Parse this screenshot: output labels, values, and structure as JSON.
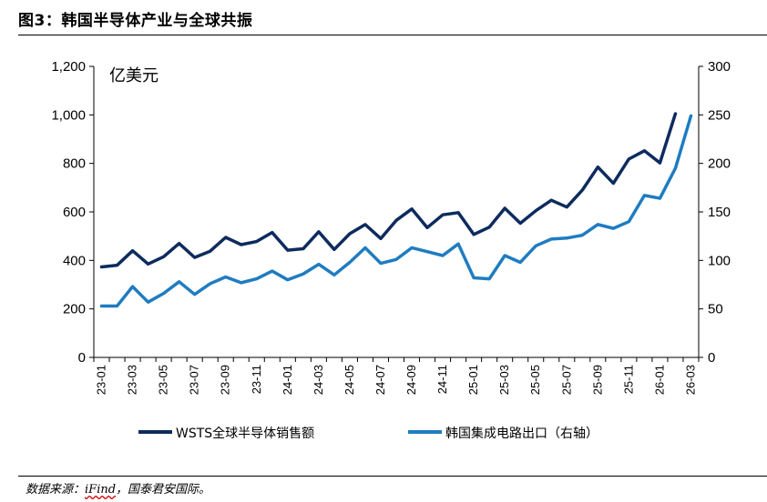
{
  "figure": {
    "title": "图3：韩国半导体产业与全球共振",
    "source_prefix": "数据来源：",
    "source_name": "iFind",
    "source_suffix": "，国泰君安国际。"
  },
  "chart_data": {
    "type": "line",
    "unit_label": "亿美元",
    "categories": [
      "23-01",
      "23-02",
      "23-03",
      "23-04",
      "23-05",
      "23-06",
      "23-07",
      "23-08",
      "23-09",
      "23-10",
      "23-11",
      "23-12",
      "24-01",
      "24-02",
      "24-03",
      "24-04",
      "24-05",
      "24-06",
      "24-07",
      "24-08",
      "24-09",
      "24-10",
      "24-11",
      "24-12",
      "25-01",
      "25-02",
      "25-03",
      "25-04",
      "25-05",
      "25-06",
      "25-07",
      "25-08",
      "25-09",
      "25-10",
      "25-11",
      "25-12",
      "26-01",
      "26-02",
      "26-03"
    ],
    "x_tick_labels": [
      "23-01",
      "23-03",
      "23-05",
      "23-07",
      "23-09",
      "23-11",
      "24-01",
      "24-03",
      "24-05",
      "24-07",
      "24-09",
      "24-11",
      "25-01",
      "25-03",
      "25-05",
      "25-07",
      "25-09",
      "25-11",
      "26-01",
      "26-03"
    ],
    "left_axis": {
      "ylim": [
        0,
        1200
      ],
      "ticks": [
        "0",
        "200",
        "400",
        "600",
        "800",
        "1,000",
        "1,200"
      ]
    },
    "right_axis": {
      "ylim": [
        0,
        300
      ],
      "ticks": [
        "0",
        "50",
        "100",
        "150",
        "200",
        "250",
        "300"
      ]
    },
    "series": [
      {
        "name": "WSTS全球半导体销售额",
        "axis": "left",
        "color": "#0d2b5e",
        "values": [
          373,
          380,
          440,
          385,
          415,
          470,
          412,
          438,
          495,
          465,
          478,
          515,
          442,
          448,
          518,
          445,
          510,
          548,
          490,
          565,
          612,
          535,
          588,
          597,
          507,
          537,
          615,
          553,
          605,
          648,
          620,
          690,
          785,
          718,
          818,
          852,
          802,
          1005,
          null
        ]
      },
      {
        "name": "韩国集成电路出口（右轴）",
        "axis": "right",
        "color": "#1f7cc1",
        "values": [
          53,
          53,
          73,
          57,
          66,
          78,
          65,
          76,
          83,
          77,
          81,
          89,
          80,
          86,
          96,
          85,
          98,
          113,
          97,
          101,
          113,
          109,
          105,
          117,
          82,
          81,
          105,
          98,
          115,
          122,
          123,
          126,
          137,
          133,
          140,
          167,
          164,
          195,
          249
        ]
      }
    ],
    "grid": false,
    "legend_position": "bottom"
  }
}
